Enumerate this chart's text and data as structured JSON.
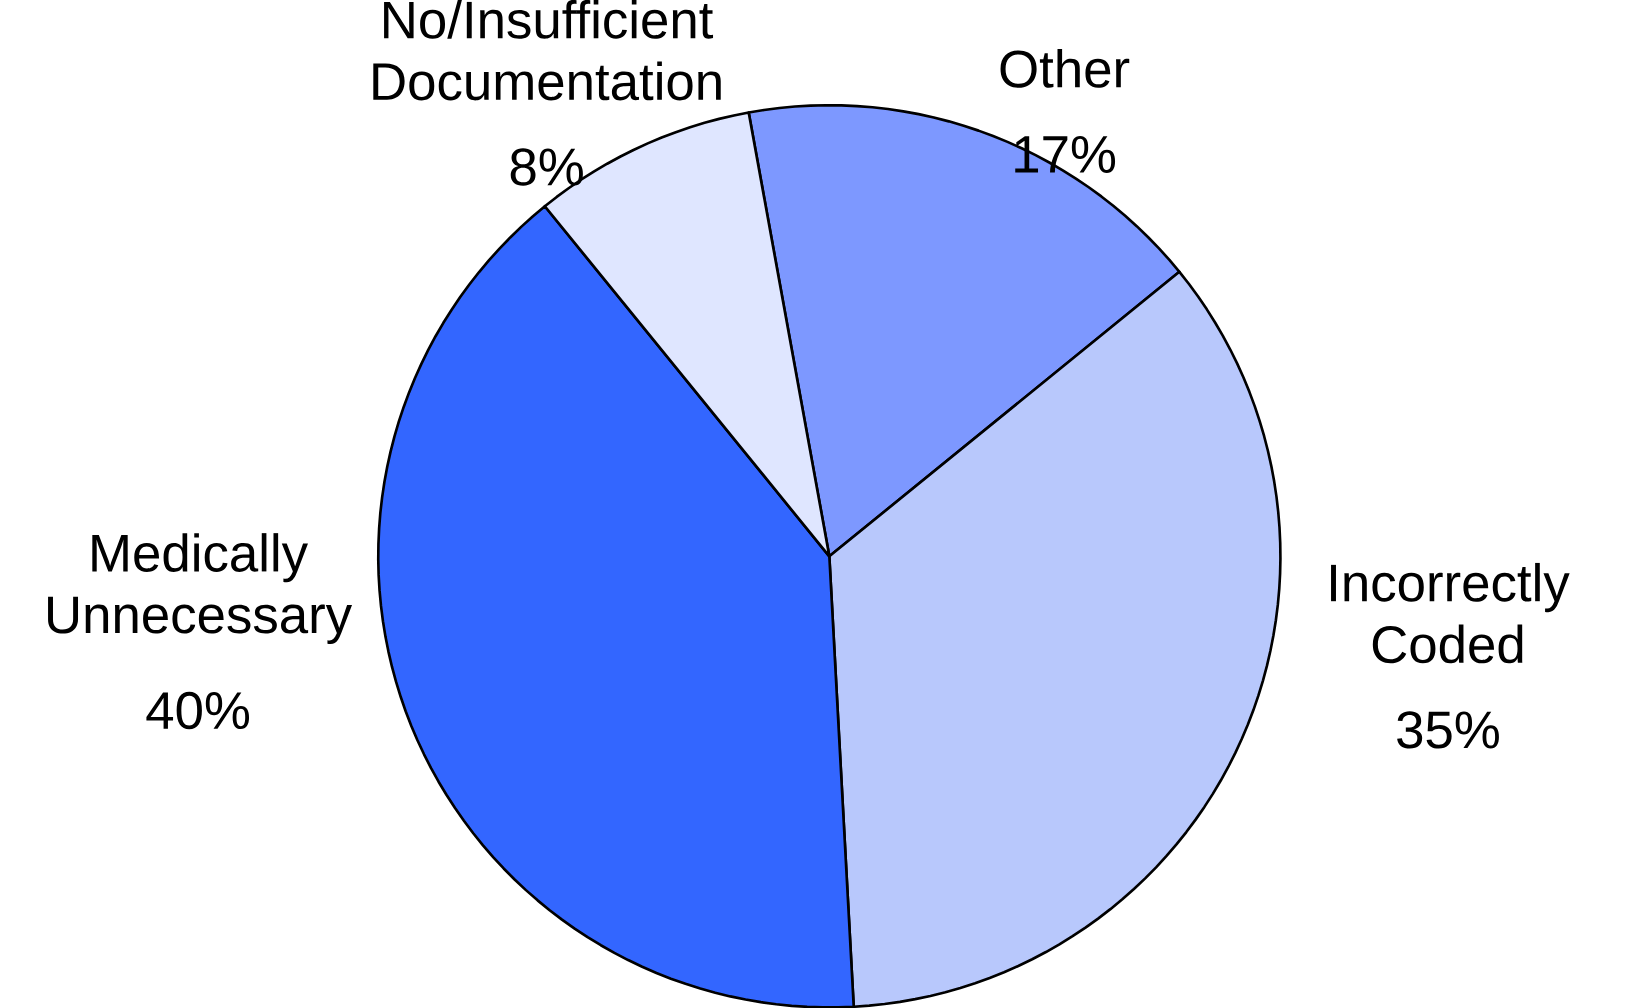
{
  "chart_data": {
    "type": "pie",
    "categories": [
      "Other",
      "Incorrectly Coded",
      "Medically Unnecessary",
      "No/Insufficient Documentation"
    ],
    "values": [
      17,
      35,
      40,
      8
    ],
    "colors": [
      "#7d98ff",
      "#b8c8fc",
      "#3366ff",
      "#dfe6ff"
    ],
    "value_labels": [
      "17%",
      "35%",
      "40%",
      "8%"
    ]
  }
}
